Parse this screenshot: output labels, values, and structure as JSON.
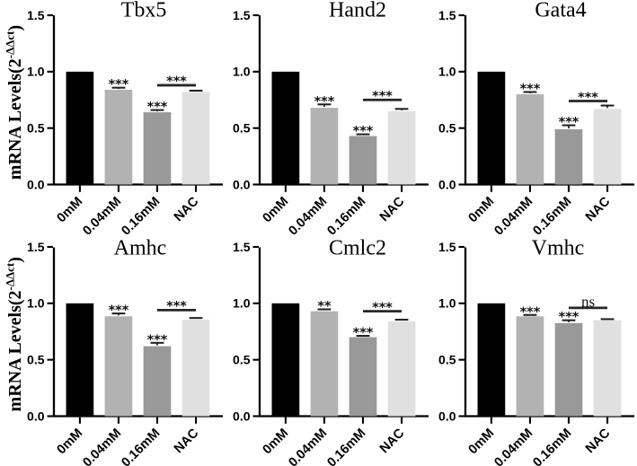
{
  "figure": {
    "background_color": "#ffffff",
    "axis_color": "#000000",
    "error_bar_color": "#1c1c1c",
    "bracket_color": "#262626",
    "y_axis_label": {
      "prefix": "mRNA Levels(2",
      "superscript": "-ΔΔct",
      "suffix": ")"
    },
    "y_tick_labels": [
      "0.0",
      "0.5",
      "1.0",
      "1.5"
    ],
    "bar_colors": [
      "#000000",
      "#b2b2b2",
      "#999999",
      "#e0e0e0"
    ],
    "categories": [
      "0mM",
      "0.04mM",
      "0.16mM",
      "NAC"
    ]
  },
  "chart_data": [
    {
      "type": "bar",
      "title": "Tbx5",
      "categories": [
        "0mM",
        "0.04mM",
        "0.16mM",
        "NAC"
      ],
      "values": [
        1.0,
        0.84,
        0.64,
        0.82
      ],
      "errors": [
        0,
        0.018,
        0.02,
        0.012
      ],
      "sig_labels": [
        "",
        "***",
        "***",
        ""
      ],
      "comparison": {
        "from": "0.16mM",
        "to": "NAC",
        "label": "***",
        "height": 0.88
      },
      "xlabel": "",
      "ylabel": "mRNA Levels(2-ΔΔct)",
      "ylim": [
        0,
        1.5
      ],
      "yticks": [
        0,
        0.5,
        1.0,
        1.5
      ],
      "grid": false,
      "legend": false
    },
    {
      "type": "bar",
      "title": "Hand2",
      "categories": [
        "0mM",
        "0.04mM",
        "0.16mM",
        "NAC"
      ],
      "values": [
        1.0,
        0.68,
        0.43,
        0.65
      ],
      "errors": [
        0,
        0.03,
        0.015,
        0.02
      ],
      "sig_labels": [
        "",
        "***",
        "***",
        ""
      ],
      "comparison": {
        "from": "0.16mM",
        "to": "NAC",
        "label": "***",
        "height": 0.75
      },
      "xlabel": "",
      "ylabel": "mRNA Levels(2-ΔΔct)",
      "ylim": [
        0,
        1.5
      ],
      "yticks": [
        0,
        0.5,
        1.0,
        1.5
      ],
      "grid": false,
      "legend": false
    },
    {
      "type": "bar",
      "title": "Gata4",
      "categories": [
        "0mM",
        "0.04mM",
        "0.16mM",
        "NAC"
      ],
      "values": [
        1.0,
        0.8,
        0.49,
        0.67
      ],
      "errors": [
        0,
        0.02,
        0.035,
        0.03
      ],
      "sig_labels": [
        "",
        "***",
        "***",
        ""
      ],
      "comparison": {
        "from": "0.16mM",
        "to": "NAC",
        "label": "***",
        "height": 0.74
      },
      "xlabel": "",
      "ylabel": "mRNA Levels(2-ΔΔct)",
      "ylim": [
        0,
        1.5
      ],
      "yticks": [
        0,
        0.5,
        1.0,
        1.5
      ],
      "grid": false,
      "legend": false
    },
    {
      "type": "bar",
      "title": "Amhc",
      "categories": [
        "0mM",
        "0.04mM",
        "0.16mM",
        "NAC"
      ],
      "values": [
        1.0,
        0.885,
        0.62,
        0.855
      ],
      "errors": [
        0,
        0.025,
        0.03,
        0.015
      ],
      "sig_labels": [
        "",
        "***",
        "***",
        ""
      ],
      "comparison": {
        "from": "0.16mM",
        "to": "NAC",
        "label": "***",
        "height": 0.94
      },
      "xlabel": "",
      "ylabel": "mRNA Levels(2-ΔΔct)",
      "ylim": [
        0,
        1.5
      ],
      "yticks": [
        0,
        0.5,
        1.0,
        1.5
      ],
      "grid": false,
      "legend": false
    },
    {
      "type": "bar",
      "title": "Cmlc2",
      "categories": [
        "0mM",
        "0.04mM",
        "0.16mM",
        "NAC"
      ],
      "values": [
        1.0,
        0.93,
        0.7,
        0.84
      ],
      "errors": [
        0,
        0.017,
        0.012,
        0.015
      ],
      "sig_labels": [
        "",
        "**",
        "***",
        ""
      ],
      "comparison": {
        "from": "0.16mM",
        "to": "NAC",
        "label": "***",
        "height": 0.93
      },
      "xlabel": "",
      "ylabel": "mRNA Levels(2-ΔΔct)",
      "ylim": [
        0,
        1.5
      ],
      "yticks": [
        0,
        0.5,
        1.0,
        1.5
      ],
      "grid": false,
      "legend": false
    },
    {
      "type": "bar",
      "title": "Vmhc",
      "categories": [
        "0mM",
        "0.04mM",
        "0.16mM",
        "NAC"
      ],
      "values": [
        1.0,
        0.885,
        0.825,
        0.85
      ],
      "errors": [
        0,
        0.012,
        0.025,
        0.01
      ],
      "sig_labels": [
        "",
        "***",
        "***",
        ""
      ],
      "comparison": {
        "from": "0.16mM",
        "to": "NAC",
        "label": "ns",
        "height": 0.96
      },
      "xlabel": "",
      "ylabel": "mRNA Levels(2-ΔΔct)",
      "ylim": [
        0,
        1.5
      ],
      "yticks": [
        0,
        0.5,
        1.0,
        1.5
      ],
      "grid": false,
      "legend": false
    }
  ]
}
